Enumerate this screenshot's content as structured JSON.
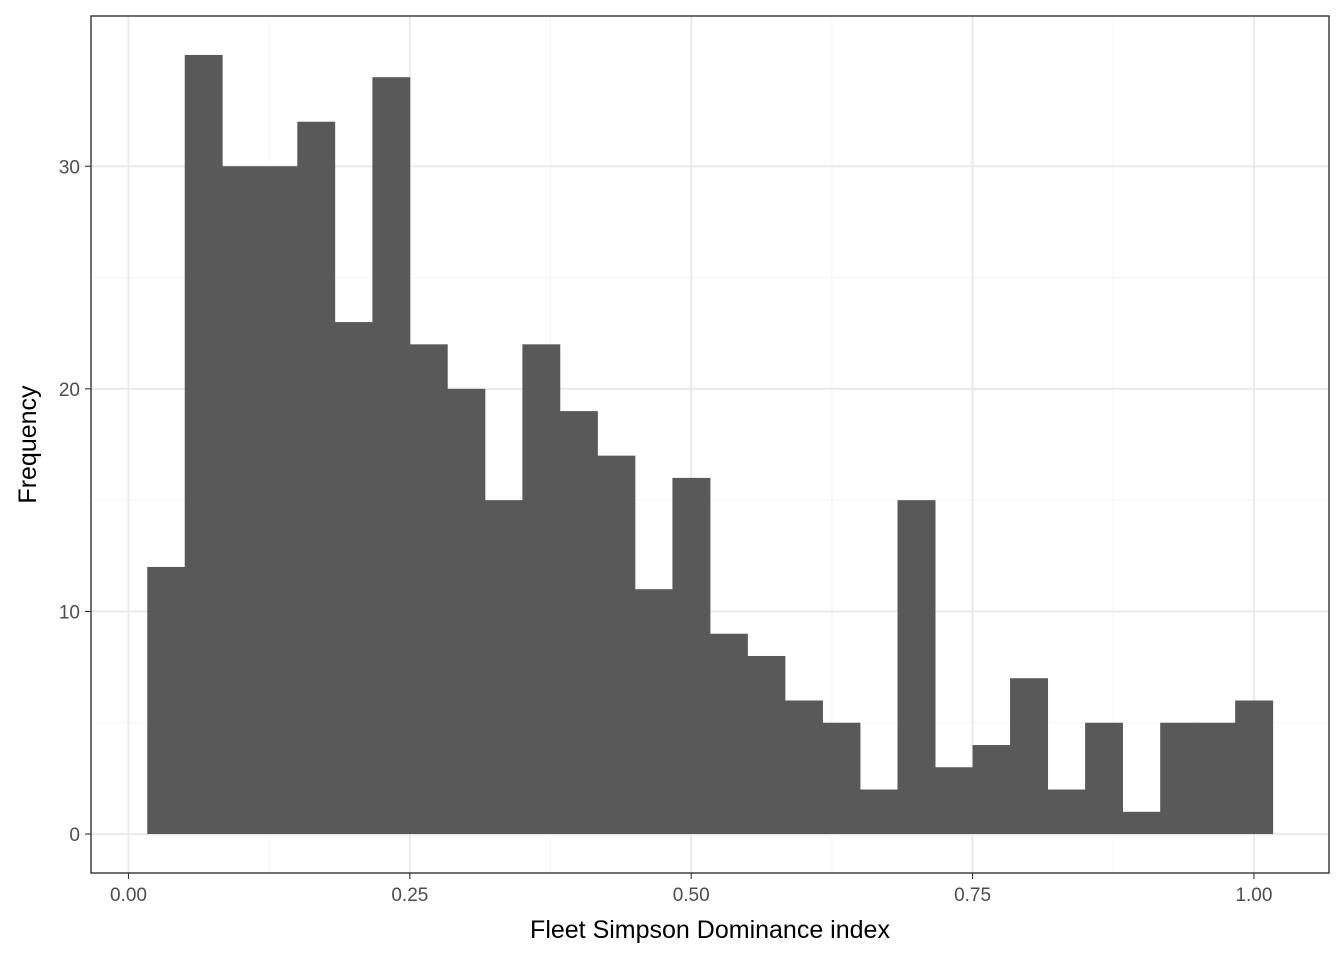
{
  "chart_data": {
    "type": "bar",
    "title": "",
    "xlabel": "Fleet Simpson Dominance index",
    "ylabel": "Frequency",
    "bins": [
      {
        "x0": 0.0167,
        "x1": 0.05,
        "count": 12
      },
      {
        "x0": 0.05,
        "x1": 0.0833,
        "count": 35
      },
      {
        "x0": 0.0833,
        "x1": 0.1167,
        "count": 30
      },
      {
        "x0": 0.1167,
        "x1": 0.15,
        "count": 30
      },
      {
        "x0": 0.15,
        "x1": 0.1833,
        "count": 32
      },
      {
        "x0": 0.1833,
        "x1": 0.2167,
        "count": 23
      },
      {
        "x0": 0.2167,
        "x1": 0.25,
        "count": 34
      },
      {
        "x0": 0.25,
        "x1": 0.2833,
        "count": 22
      },
      {
        "x0": 0.2833,
        "x1": 0.3167,
        "count": 20
      },
      {
        "x0": 0.3167,
        "x1": 0.35,
        "count": 15
      },
      {
        "x0": 0.35,
        "x1": 0.3833,
        "count": 22
      },
      {
        "x0": 0.3833,
        "x1": 0.4167,
        "count": 19
      },
      {
        "x0": 0.4167,
        "x1": 0.45,
        "count": 17
      },
      {
        "x0": 0.45,
        "x1": 0.4833,
        "count": 11
      },
      {
        "x0": 0.4833,
        "x1": 0.5167,
        "count": 16
      },
      {
        "x0": 0.5167,
        "x1": 0.55,
        "count": 9
      },
      {
        "x0": 0.55,
        "x1": 0.5833,
        "count": 8
      },
      {
        "x0": 0.5833,
        "x1": 0.6167,
        "count": 6
      },
      {
        "x0": 0.6167,
        "x1": 0.65,
        "count": 5
      },
      {
        "x0": 0.65,
        "x1": 0.6833,
        "count": 2
      },
      {
        "x0": 0.6833,
        "x1": 0.7167,
        "count": 15
      },
      {
        "x0": 0.7167,
        "x1": 0.75,
        "count": 3
      },
      {
        "x0": 0.75,
        "x1": 0.7833,
        "count": 4
      },
      {
        "x0": 0.7833,
        "x1": 0.8167,
        "count": 7
      },
      {
        "x0": 0.8167,
        "x1": 0.85,
        "count": 2
      },
      {
        "x0": 0.85,
        "x1": 0.8833,
        "count": 5
      },
      {
        "x0": 0.8833,
        "x1": 0.9167,
        "count": 1
      },
      {
        "x0": 0.9167,
        "x1": 0.95,
        "count": 5
      },
      {
        "x0": 0.95,
        "x1": 0.9833,
        "count": 5
      },
      {
        "x0": 0.9833,
        "x1": 1.0167,
        "count": 6
      }
    ],
    "xlim": [
      -0.0333,
      1.0667
    ],
    "ylim": [
      -1.75,
      36.75
    ],
    "x_ticks": [
      0.0,
      0.25,
      0.5,
      0.75,
      1.0
    ],
    "x_tick_labels": [
      "0.00",
      "0.25",
      "0.50",
      "0.75",
      "1.00"
    ],
    "y_ticks": [
      0,
      10,
      20,
      30
    ],
    "y_tick_labels": [
      "0",
      "10",
      "20",
      "30"
    ],
    "grid": true,
    "legend": "none",
    "colors": {
      "bar": "#595959",
      "panel_border": "#333333",
      "grid_major": "#ebebeb",
      "grid_minor": "#f5f5f5",
      "tick_label": "#4d4d4d",
      "axis_title": "#000000"
    }
  }
}
